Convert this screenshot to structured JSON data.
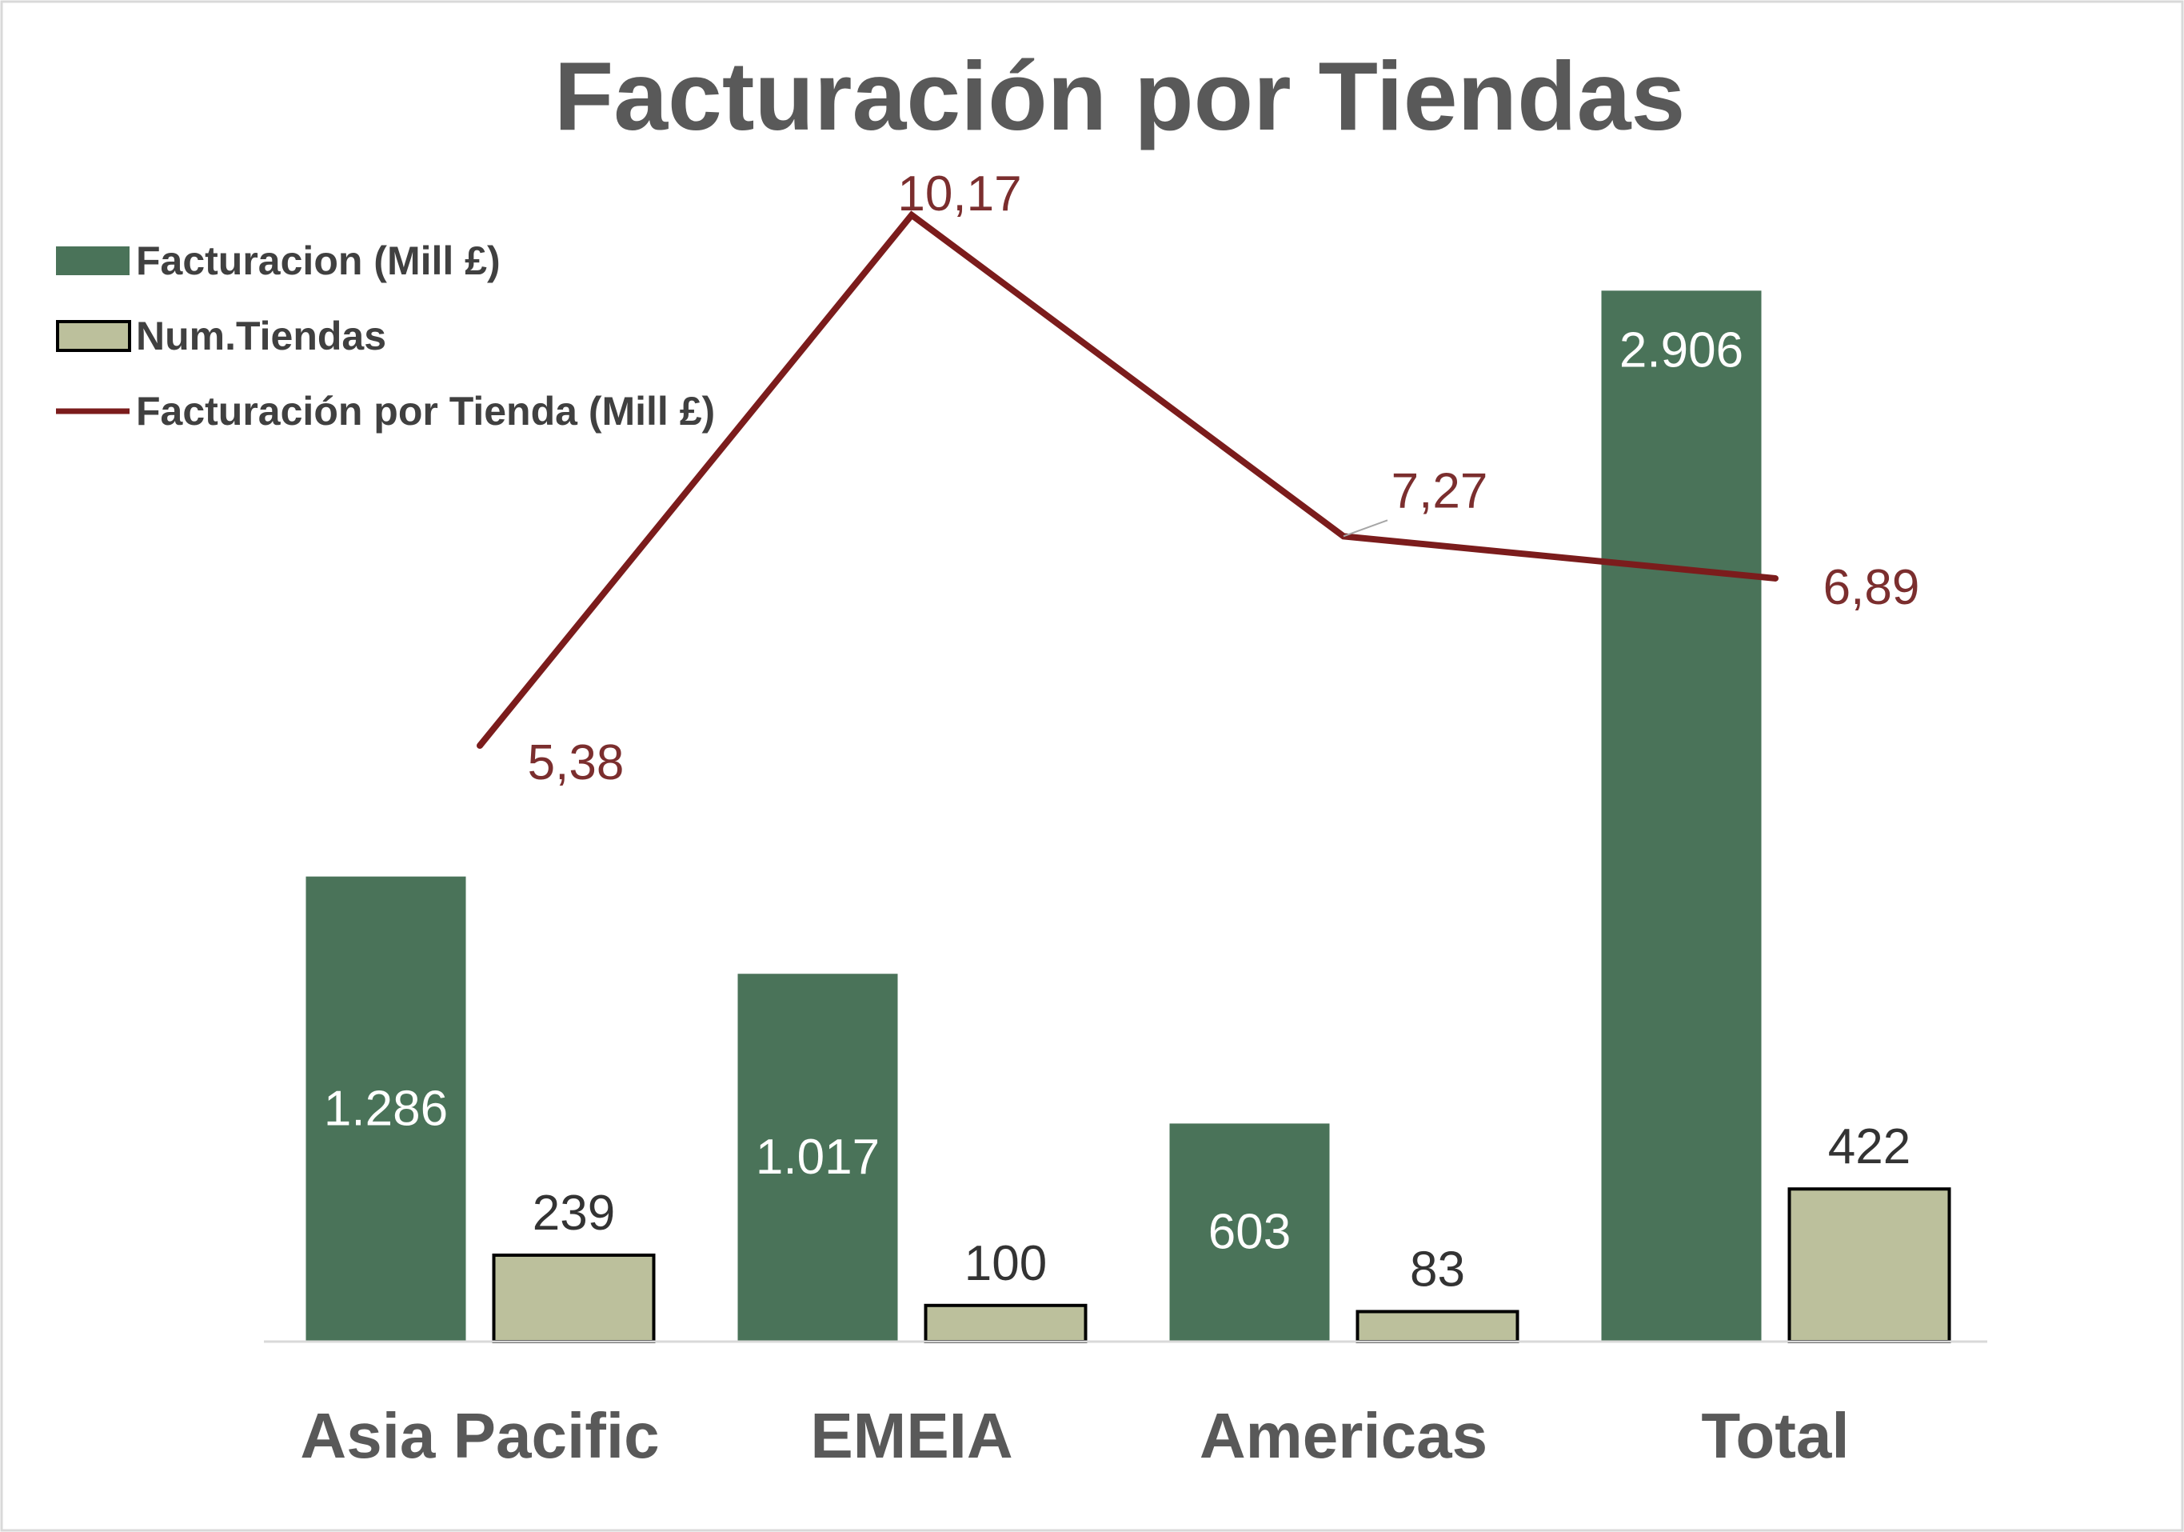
{
  "chart_data": {
    "type": "bar",
    "title": "Facturación por Tiendas",
    "categories": [
      "Asia Pacific",
      "EMEIA",
      "Americas",
      "Total"
    ],
    "series": [
      {
        "name": "Facturacion (Mill £)",
        "kind": "bar",
        "color": "#4a7359",
        "label_color": "#ffffff",
        "values": [
          1286,
          1017,
          603,
          2906
        ],
        "labels": [
          "1.286",
          "1.017",
          "603",
          "2.906"
        ]
      },
      {
        "name": "Num.Tiendas",
        "kind": "bar",
        "color": "#bcc09c",
        "border_color": "#000000",
        "label_color": "#333333",
        "values": [
          239,
          100,
          83,
          422
        ],
        "labels": [
          "239",
          "100",
          "83",
          "422"
        ]
      },
      {
        "name": "Facturación por Tienda (Mill £)",
        "kind": "line",
        "secondary_axis": true,
        "color": "#7b1c1c",
        "label_color": "#7b2e2e",
        "values": [
          5.38,
          10.17,
          7.27,
          6.89
        ],
        "labels": [
          "5,38",
          "10,17",
          "7,27",
          "6,89"
        ]
      }
    ],
    "ylim": [
      0,
      3400
    ],
    "y2lim": [
      0,
      11.1
    ],
    "xlabel": "",
    "ylabel": "",
    "grid": false,
    "legend_position": "top-left",
    "colors": {
      "title": "#595959",
      "axis_labels": "#595959",
      "legend_text": "#404040",
      "axis_line": "#d9d9d9",
      "frame": "#d9d9d9"
    }
  }
}
